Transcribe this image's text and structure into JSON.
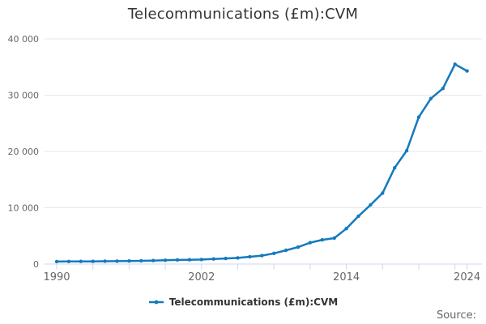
{
  "chart_data": {
    "type": "line",
    "title": "Telecommunications (£m):CVM",
    "xlabel": "",
    "ylabel": "",
    "xlim": [
      1990,
      2025.2
    ],
    "ylim": [
      0,
      40000
    ],
    "grid": "horizontal gridlines only",
    "legend_position": "bottom-center",
    "x": [
      1990,
      1991,
      1992,
      1993,
      1994,
      1995,
      1996,
      1997,
      1998,
      1999,
      2000,
      2001,
      2002,
      2003,
      2004,
      2005,
      2006,
      2007,
      2008,
      2009,
      2010,
      2011,
      2012,
      2013,
      2014,
      2015,
      2016,
      2017,
      2018,
      2019,
      2020,
      2021,
      2022,
      2023,
      2024
    ],
    "series": [
      {
        "name": "Telecommunications (£m):CVM",
        "values": [
          450,
          460,
          470,
          480,
          500,
          520,
          550,
          580,
          620,
          670,
          730,
          760,
          800,
          900,
          1000,
          1100,
          1300,
          1500,
          1900,
          2450,
          3000,
          3800,
          4300,
          4600,
          6300,
          8500,
          10500,
          12600,
          17100,
          20150,
          26100,
          29400,
          31200,
          35500,
          34300
        ]
      }
    ],
    "y_ticks": [
      {
        "value": 0,
        "label": "0"
      },
      {
        "value": 10000,
        "label": "10 000"
      },
      {
        "value": 20000,
        "label": "20 000"
      },
      {
        "value": 30000,
        "label": "30 000"
      },
      {
        "value": 40000,
        "label": "40 000"
      }
    ],
    "x_minor_tick_years": [
      1990,
      1993,
      1996,
      1999,
      2002,
      2005,
      2008,
      2011,
      2014,
      2017,
      2020,
      2023,
      2024
    ],
    "x_labeled_ticks": [
      {
        "year": 1990,
        "label": "1990"
      },
      {
        "year": 2002,
        "label": "2002"
      },
      {
        "year": 2014,
        "label": "2014"
      },
      {
        "year": 2024,
        "label": "2024"
      }
    ]
  },
  "legend": {
    "label": "Telecommunications (£m):CVM"
  },
  "footer": {
    "source_label": "Source:"
  },
  "colors": {
    "series_line": "#137ABE",
    "marker_fill": "#137ABE",
    "gridline": "#E6E6E6",
    "axis_line": "#CCD6EB",
    "tick_mark": "#CCD6EB",
    "axis_label": "#666666",
    "title_text": "#333333",
    "legend_text": "#333333",
    "background": "#FFFFFF"
  }
}
